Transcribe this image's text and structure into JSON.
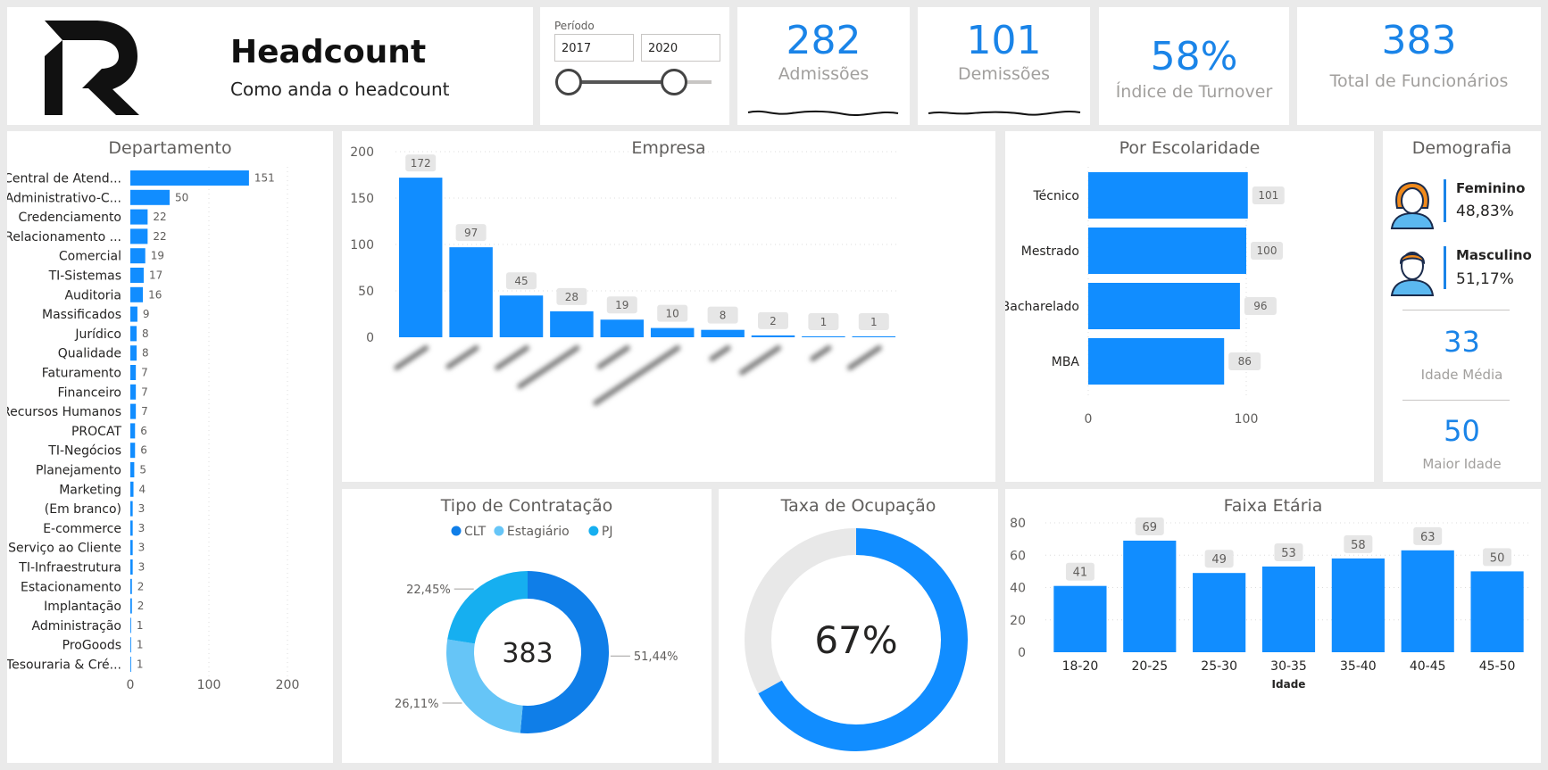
{
  "colors": {
    "accent": "#1a84e8",
    "bar": "#118dff",
    "clt": "#0f7ee8",
    "estagiario": "#66c5f7",
    "pj": "#16aff0",
    "track": "#e8e8e8"
  },
  "header": {
    "logo_icon": "r-logo-icon",
    "title": "Headcount",
    "subtitle": "Como anda o headcount"
  },
  "periodo": {
    "label": "Período",
    "start": "2017",
    "end": "2020"
  },
  "kpis": {
    "admissoes": {
      "value": "282",
      "label": "Admissões"
    },
    "demissoes": {
      "value": "101",
      "label": "Demissões"
    },
    "turnover": {
      "value": "58%",
      "label": "Índice de Turnover"
    },
    "total": {
      "value": "383",
      "label": "Total de Funcionários"
    }
  },
  "demografia": {
    "title": "Demografia",
    "feminino": {
      "label": "Feminino",
      "value": "48,83%",
      "icon": "woman-avatar-icon"
    },
    "masculino": {
      "label": "Masculino",
      "value": "51,17%",
      "icon": "man-avatar-icon"
    },
    "idade_media": {
      "value": "33",
      "label": "Idade Média"
    },
    "maior_idade": {
      "value": "50",
      "label": "Maior Idade"
    }
  },
  "chart_data": [
    {
      "id": "departamento",
      "type": "bar",
      "orientation": "horizontal",
      "title": "Departamento",
      "categories": [
        "Central de Atend...",
        "Administrativo-C...",
        "Credenciamento",
        "Relacionamento ...",
        "Comercial",
        "TI-Sistemas",
        "Auditoria",
        "Massificados",
        "Jurídico",
        "Qualidade",
        "Faturamento",
        "Financeiro",
        "Recursos Humanos",
        "PROCAT",
        "TI-Negócios",
        "Planejamento",
        "Marketing",
        "(Em branco)",
        "E-commerce",
        "Serviço ao Cliente",
        "TI-Infraestrutura",
        "Estacionamento",
        "Implantação",
        "Administração",
        "ProGoods",
        "Tesouraria & Cré..."
      ],
      "values": [
        151,
        50,
        22,
        22,
        19,
        17,
        16,
        9,
        8,
        8,
        7,
        7,
        7,
        6,
        6,
        5,
        4,
        3,
        3,
        3,
        3,
        2,
        2,
        1,
        1,
        1
      ],
      "xlim": [
        0,
        200
      ],
      "xticks": [
        0,
        100,
        200
      ]
    },
    {
      "id": "empresa",
      "type": "bar",
      "title": "Empresa",
      "categories": [
        "",
        "",
        "",
        "",
        "",
        "",
        "",
        "",
        "",
        ""
      ],
      "values": [
        172,
        97,
        45,
        28,
        19,
        10,
        8,
        2,
        1,
        1
      ],
      "ylim": [
        0,
        200
      ],
      "yticks": [
        0,
        50,
        100,
        150,
        200
      ]
    },
    {
      "id": "escolaridade",
      "type": "bar",
      "orientation": "horizontal",
      "title": "Por Escolaridade",
      "categories": [
        "Técnico",
        "Mestrado",
        "Bacharelado",
        "MBA"
      ],
      "values": [
        101,
        100,
        96,
        86
      ],
      "xlim": [
        0,
        100
      ],
      "xticks": [
        0,
        100
      ]
    },
    {
      "id": "contratacao",
      "type": "pie",
      "title": "Tipo de Contratação",
      "center_label": "383",
      "legend": "top",
      "slices": [
        {
          "name": "CLT",
          "value": 51.44,
          "label": "51,44%"
        },
        {
          "name": "Estagiário",
          "value": 26.11,
          "label": "26,11%"
        },
        {
          "name": "PJ",
          "value": 22.45,
          "label": "22,45%"
        }
      ]
    },
    {
      "id": "ocupacao",
      "type": "pie",
      "title": "Taxa de Ocupação",
      "value": 67,
      "center_label": "67%"
    },
    {
      "id": "faixa",
      "type": "bar",
      "title": "Faixa Etária",
      "xlabel": "Idade",
      "categories": [
        "18-20",
        "20-25",
        "25-30",
        "30-35",
        "35-40",
        "40-45",
        "45-50"
      ],
      "values": [
        41,
        69,
        49,
        53,
        58,
        63,
        50
      ],
      "ylim": [
        0,
        80
      ],
      "yticks": [
        0,
        20,
        40,
        60,
        80
      ]
    }
  ]
}
